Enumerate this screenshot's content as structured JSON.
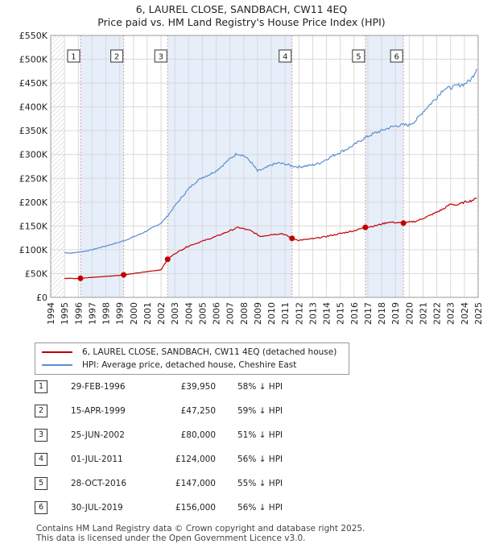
{
  "title_line1": "6, LAUREL CLOSE, SANDBACH, CW11 4EQ",
  "title_line2": "Price paid vs. HM Land Registry's House Price Index (HPI)",
  "colors": {
    "hpi": "#5b8fcf",
    "property": "#c00000",
    "shade": "#e6eefa",
    "grid": "#d9d9d9",
    "vline": "#d9a0a0"
  },
  "legend": {
    "property_label": "6, LAUREL CLOSE, SANDBACH, CW11 4EQ (detached house)",
    "hpi_label": "HPI: Average price, detached house, Cheshire East"
  },
  "chart_data": {
    "type": "line",
    "xlim": [
      1994,
      2025
    ],
    "ylim": [
      0,
      550000
    ],
    "yticks": [
      0,
      50000,
      100000,
      150000,
      200000,
      250000,
      300000,
      350000,
      400000,
      450000,
      500000,
      550000
    ],
    "ytick_labels": [
      "£0",
      "£50K",
      "£100K",
      "£150K",
      "£200K",
      "£250K",
      "£300K",
      "£350K",
      "£400K",
      "£450K",
      "£500K",
      "£550K"
    ],
    "xtick_labels": [
      "1994",
      "1995",
      "1996",
      "1997",
      "1998",
      "1999",
      "2000",
      "2001",
      "2002",
      "2003",
      "2004",
      "2005",
      "2006",
      "2007",
      "2008",
      "2009",
      "2010",
      "2011",
      "2012",
      "2013",
      "2014",
      "2015",
      "2016",
      "2017",
      "2018",
      "2019",
      "2020",
      "2021",
      "2022",
      "2023",
      "2024",
      "2025"
    ],
    "hatched_regions": [
      [
        1994.0,
        1995.0
      ],
      [
        2024.9,
        2025.0
      ]
    ],
    "hpi_anchors": [
      [
        1995.0,
        94000
      ],
      [
        1995.5,
        93000
      ],
      [
        1996.0,
        95000
      ],
      [
        1996.5,
        97000
      ],
      [
        1997.0,
        100000
      ],
      [
        1997.5,
        104000
      ],
      [
        1998.0,
        108000
      ],
      [
        1998.5,
        112000
      ],
      [
        1999.0,
        116000
      ],
      [
        1999.5,
        121000
      ],
      [
        2000.0,
        127000
      ],
      [
        2000.5,
        133000
      ],
      [
        2001.0,
        140000
      ],
      [
        2001.5,
        148000
      ],
      [
        2002.0,
        156000
      ],
      [
        2002.5,
        172000
      ],
      [
        2003.0,
        192000
      ],
      [
        2003.5,
        210000
      ],
      [
        2004.0,
        228000
      ],
      [
        2004.5,
        242000
      ],
      [
        2005.0,
        252000
      ],
      [
        2005.5,
        258000
      ],
      [
        2006.0,
        266000
      ],
      [
        2006.5,
        278000
      ],
      [
        2007.0,
        291000
      ],
      [
        2007.5,
        302000
      ],
      [
        2008.0,
        298000
      ],
      [
        2008.5,
        285000
      ],
      [
        2009.0,
        265000
      ],
      [
        2009.5,
        270000
      ],
      [
        2010.0,
        278000
      ],
      [
        2010.5,
        282000
      ],
      [
        2011.0,
        280000
      ],
      [
        2011.5,
        276000
      ],
      [
        2012.0,
        274000
      ],
      [
        2012.5,
        276000
      ],
      [
        2013.0,
        278000
      ],
      [
        2013.5,
        282000
      ],
      [
        2014.0,
        290000
      ],
      [
        2014.5,
        298000
      ],
      [
        2015.0,
        305000
      ],
      [
        2015.5,
        312000
      ],
      [
        2016.0,
        320000
      ],
      [
        2016.5,
        330000
      ],
      [
        2017.0,
        338000
      ],
      [
        2017.5,
        345000
      ],
      [
        2018.0,
        350000
      ],
      [
        2018.5,
        356000
      ],
      [
        2019.0,
        360000
      ],
      [
        2019.5,
        362000
      ],
      [
        2020.0,
        362000
      ],
      [
        2020.5,
        372000
      ],
      [
        2021.0,
        390000
      ],
      [
        2021.5,
        405000
      ],
      [
        2022.0,
        420000
      ],
      [
        2022.5,
        438000
      ],
      [
        2023.0,
        440000
      ],
      [
        2023.5,
        445000
      ],
      [
        2024.0,
        448000
      ],
      [
        2024.5,
        458000
      ],
      [
        2024.9,
        480000
      ]
    ],
    "property_anchors": [
      [
        1995.0,
        40000
      ],
      [
        1996.16,
        39950
      ],
      [
        1997.0,
        42000
      ],
      [
        1998.0,
        44000
      ],
      [
        1999.29,
        47250
      ],
      [
        2000.0,
        50000
      ],
      [
        2001.0,
        54000
      ],
      [
        2002.0,
        58000
      ],
      [
        2002.48,
        80000
      ],
      [
        2003.0,
        92000
      ],
      [
        2004.0,
        108000
      ],
      [
        2005.0,
        118000
      ],
      [
        2006.0,
        128000
      ],
      [
        2007.0,
        140000
      ],
      [
        2007.6,
        147000
      ],
      [
        2008.5,
        140000
      ],
      [
        2009.2,
        128000
      ],
      [
        2010.0,
        132000
      ],
      [
        2010.8,
        134000
      ],
      [
        2011.5,
        124000
      ],
      [
        2012.0,
        120000
      ],
      [
        2013.0,
        123000
      ],
      [
        2014.0,
        128000
      ],
      [
        2015.0,
        134000
      ],
      [
        2016.0,
        140000
      ],
      [
        2016.82,
        147000
      ],
      [
        2017.5,
        150000
      ],
      [
        2018.5,
        158000
      ],
      [
        2019.58,
        156000
      ],
      [
        2020.5,
        160000
      ],
      [
        2021.5,
        172000
      ],
      [
        2022.5,
        186000
      ],
      [
        2023.0,
        196000
      ],
      [
        2023.5,
        194000
      ],
      [
        2024.0,
        200000
      ],
      [
        2024.5,
        203000
      ],
      [
        2024.9,
        208000
      ]
    ],
    "sales": [
      {
        "label": "1",
        "date": "29-FEB-1996",
        "x": 1996.16,
        "price_value": 39950,
        "price": "£39,950",
        "pct": "58% ↓ HPI"
      },
      {
        "label": "2",
        "date": "15-APR-1999",
        "x": 1999.29,
        "price_value": 47250,
        "price": "£47,250",
        "pct": "59% ↓ HPI"
      },
      {
        "label": "3",
        "date": "25-JUN-2002",
        "x": 2002.48,
        "price_value": 80000,
        "price": "£80,000",
        "pct": "51% ↓ HPI"
      },
      {
        "label": "4",
        "date": "01-JUL-2011",
        "x": 2011.5,
        "price_value": 124000,
        "price": "£124,000",
        "pct": "56% ↓ HPI"
      },
      {
        "label": "5",
        "date": "28-OCT-2016",
        "x": 2016.82,
        "price_value": 147000,
        "price": "£147,000",
        "pct": "55% ↓ HPI"
      },
      {
        "label": "6",
        "date": "30-JUL-2019",
        "x": 2019.58,
        "price_value": 156000,
        "price": "£156,000",
        "pct": "56% ↓ HPI"
      }
    ],
    "shaded_pairs": [
      [
        0,
        1
      ],
      [
        2,
        3
      ],
      [
        4,
        5
      ]
    ]
  },
  "footer_line1": "Contains HM Land Registry data © Crown copyright and database right 2025.",
  "footer_line2": "This data is licensed under the Open Government Licence v3.0."
}
